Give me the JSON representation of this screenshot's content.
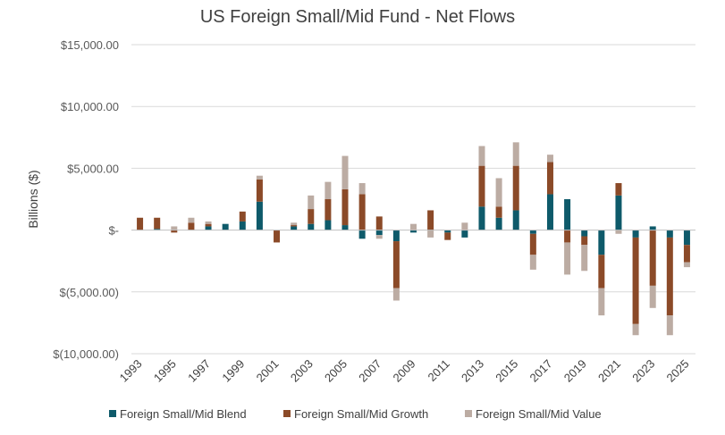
{
  "chart_data": {
    "type": "bar",
    "stacked": true,
    "title": "US Foreign Small/Mid Fund - Net Flows",
    "xlabel": "",
    "ylabel": "Billions ($)",
    "ylim": [
      -10000,
      15000
    ],
    "yticks": [
      15000,
      10000,
      5000,
      0,
      -5000,
      -10000
    ],
    "ytick_labels": [
      "$15,000.00",
      "$10,000.00",
      "$5,000.00",
      "$-",
      "$(5,000.00)",
      "$(10,000.00)"
    ],
    "categories": [
      "1993",
      "1994",
      "1995",
      "1996",
      "1997",
      "1998",
      "1999",
      "2000",
      "2001",
      "2002",
      "2003",
      "2004",
      "2005",
      "2006",
      "2007",
      "2008",
      "2009",
      "2010",
      "2011",
      "2012",
      "2013",
      "2014",
      "2015",
      "2016",
      "2017",
      "2018",
      "2019",
      "2020",
      "2021",
      "2022",
      "2023",
      "2024",
      "2025"
    ],
    "xtick_labels": [
      "1993",
      "1995",
      "1997",
      "1999",
      "2001",
      "2003",
      "2005",
      "2007",
      "2009",
      "2011",
      "2013",
      "2015",
      "2017",
      "2019",
      "2021",
      "2023",
      "2025"
    ],
    "grid": true,
    "legend": "bottom",
    "colors": {
      "blend": "#0e5a6a",
      "growth": "#8b4a28",
      "value": "#bcaca3"
    },
    "series": [
      {
        "name": "Foreign Small/Mid Blend",
        "values": [
          0,
          100,
          0,
          0,
          300,
          500,
          700,
          2300,
          0,
          300,
          500,
          800,
          400,
          -700,
          -400,
          -900,
          -200,
          0,
          -200,
          -600,
          1900,
          1000,
          1600,
          -300,
          2900,
          2500,
          -500,
          -2000,
          2800,
          -600,
          300,
          -600,
          -1200
        ]
      },
      {
        "name": "Foreign Small/Mid Growth",
        "values": [
          1000,
          900,
          -200,
          600,
          200,
          0,
          800,
          1800,
          -1000,
          100,
          1200,
          1700,
          2900,
          2900,
          1100,
          -3800,
          0,
          1600,
          -600,
          0,
          3300,
          900,
          3600,
          -1700,
          2600,
          -1000,
          -700,
          -2700,
          1000,
          -7000,
          -4500,
          -6300,
          -1400
        ]
      },
      {
        "name": "Foreign Small/Mid Value",
        "values": [
          0,
          0,
          300,
          400,
          200,
          0,
          0,
          300,
          0,
          200,
          1100,
          1400,
          2700,
          900,
          -300,
          -1000,
          500,
          -600,
          0,
          600,
          1600,
          2300,
          1900,
          -1200,
          600,
          -2600,
          -2100,
          -2200,
          -300,
          -900,
          -1800,
          -1600,
          -400
        ]
      }
    ]
  }
}
